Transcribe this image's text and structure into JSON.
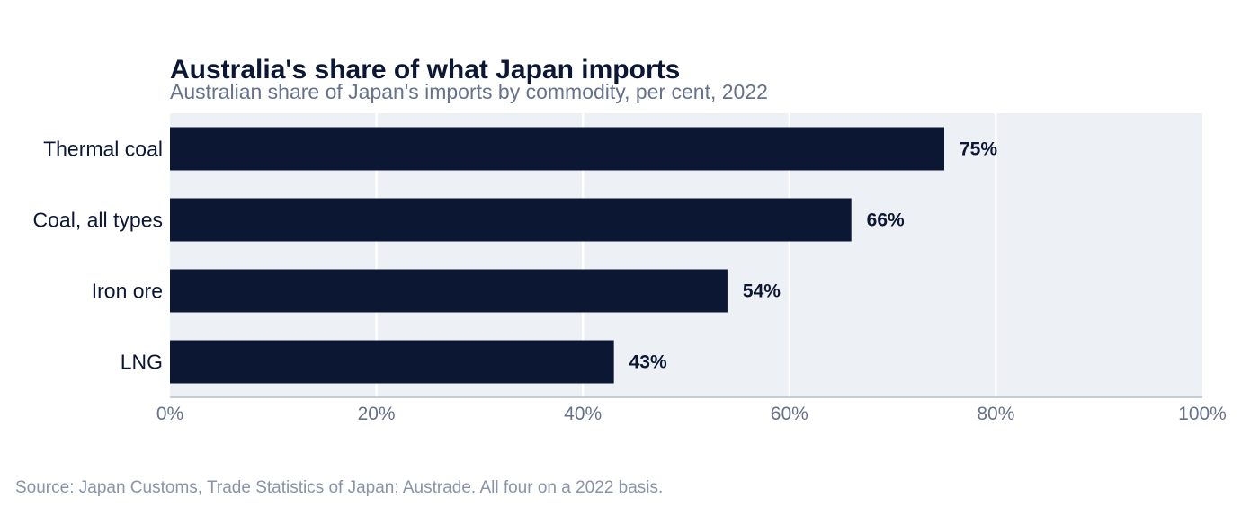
{
  "chart_data": {
    "type": "bar",
    "orientation": "horizontal",
    "title": "Australia's share of what Japan imports",
    "subtitle": "Australian share of Japan's imports by commodity, per cent, 2022",
    "categories": [
      "Thermal coal",
      "Coal, all types",
      "Iron ore",
      "LNG"
    ],
    "values": [
      75,
      66,
      54,
      43
    ],
    "value_labels": [
      "75%",
      "66%",
      "54%",
      "43%"
    ],
    "xlim": [
      0,
      100
    ],
    "x_ticks": [
      0,
      20,
      40,
      60,
      80,
      100
    ],
    "x_tick_labels": [
      "0%",
      "20%",
      "40%",
      "60%",
      "80%",
      "100%"
    ],
    "xlabel": "",
    "ylabel": "",
    "grid": "vertical",
    "legend": "none",
    "source": "Source: Japan Customs, Trade Statistics of Japan; Austrade. All four on a 2022 basis."
  },
  "colors": {
    "bar": "#0b1733",
    "plot_background": "#edf0f5",
    "gridline": "#ffffff",
    "axis_line": "#c5ccd8",
    "title": "#0b1733",
    "subtitle": "#66728a",
    "source": "#8a94a6"
  }
}
